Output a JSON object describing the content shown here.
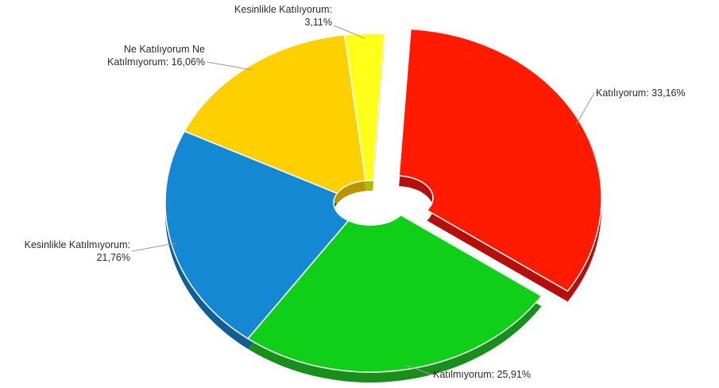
{
  "chart_data": {
    "type": "pie",
    "variant": "3d-donut-exploded",
    "slices": [
      {
        "label_lines": [
          "Katılıyorum: 33,16%"
        ],
        "name": "Katılıyorum",
        "value": 33.16,
        "color": "#ff1a00",
        "side": "#b80d0d",
        "exploded": true
      },
      {
        "label_lines": [
          "Katılmıyorum: 25,91%"
        ],
        "name": "Katılmıyorum",
        "value": 25.91,
        "color": "#0fcf18",
        "side": "#178f1a",
        "exploded": false
      },
      {
        "label_lines": [
          "Kesinlikle Katılmıyorum:",
          "21,76%"
        ],
        "name": "Kesinlikle Katılmıyorum",
        "value": 21.76,
        "color": "#1488d3",
        "side": "#0f5f96",
        "exploded": false
      },
      {
        "label_lines": [
          "Ne Katılıyorum Ne",
          "Katılmıyorum: 16,06%"
        ],
        "name": "Ne Katılıyorum Ne Katılmıyorum",
        "value": 16.06,
        "color": "#ffd000",
        "side": "#b89400",
        "exploded": false
      },
      {
        "label_lines": [
          "Kesinlikle Katılıyorum:",
          "3,11%"
        ],
        "name": "Kesinlikle Katılıyorum",
        "value": 3.11,
        "color": "#ffff1a",
        "side": "#b8b800",
        "exploded": false
      }
    ]
  }
}
